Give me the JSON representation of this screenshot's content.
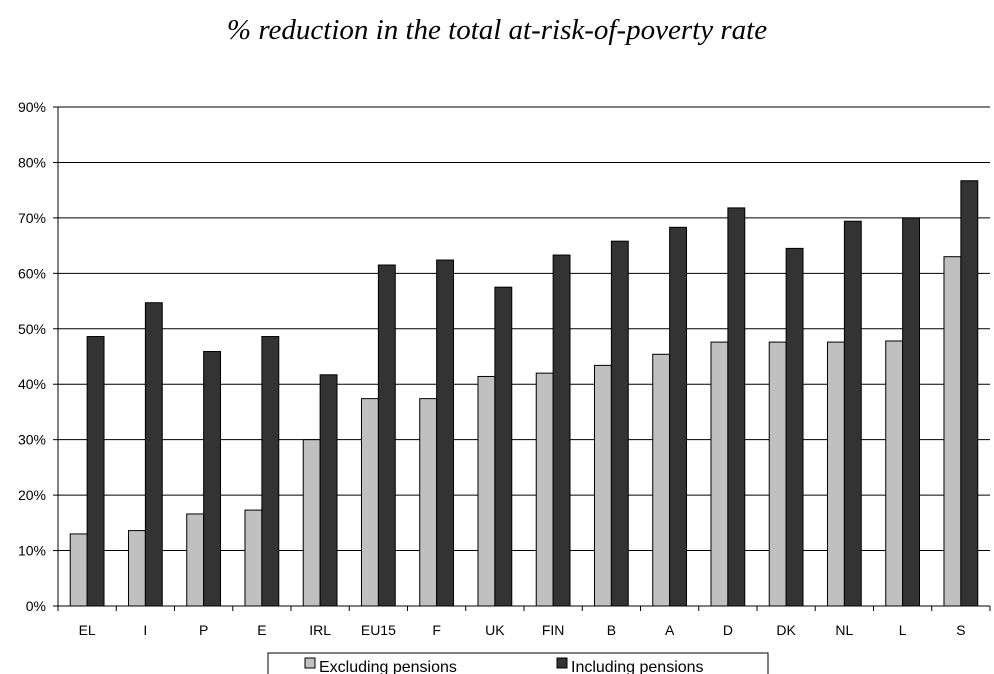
{
  "chart_data": {
    "type": "bar",
    "title": "% reduction in the total at-risk-of-poverty rate",
    "categories": [
      "EL",
      "I",
      "P",
      "E",
      "IRL",
      "EU15",
      "F",
      "UK",
      "FIN",
      "B",
      "A",
      "D",
      "DK",
      "NL",
      "L",
      "S"
    ],
    "series": [
      {
        "name": "Excluding pensions",
        "color": "#c0c0c0",
        "values": [
          13,
          13.6,
          16.6,
          17.3,
          30,
          37.4,
          37.4,
          41.4,
          42,
          43.4,
          45.4,
          47.6,
          47.6,
          47.6,
          47.8,
          63
        ]
      },
      {
        "name": "Including pensions",
        "color": "#333333",
        "values": [
          48.6,
          54.7,
          45.9,
          48.6,
          41.7,
          61.5,
          62.4,
          57.5,
          63.3,
          65.8,
          68.3,
          71.8,
          64.5,
          69.4,
          70,
          76.7
        ]
      }
    ],
    "y_ticks": [
      "0%",
      "10%",
      "20%",
      "30%",
      "40%",
      "50%",
      "60%",
      "70%",
      "80%",
      "90%"
    ],
    "ylim": [
      0,
      90
    ],
    "grid": true,
    "legend": "bottom"
  }
}
